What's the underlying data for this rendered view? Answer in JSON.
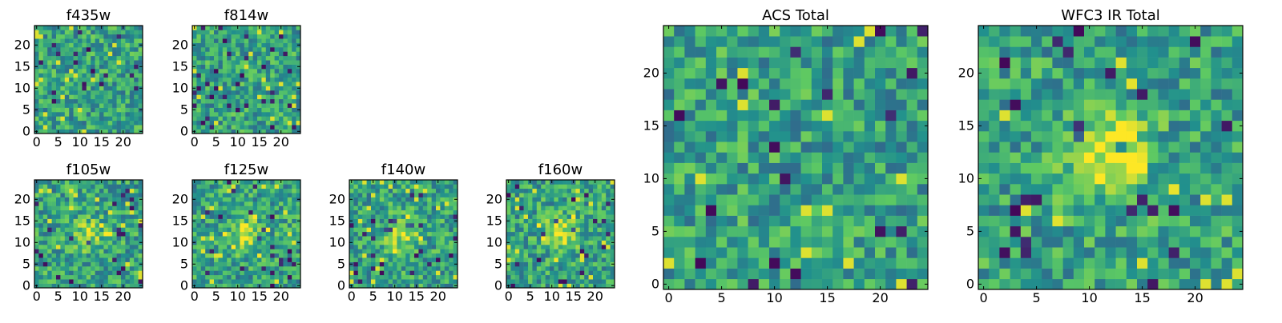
{
  "figure": {
    "panels": [
      {
        "id": "f435w",
        "title": "f435w",
        "size": 25,
        "seed": 435,
        "blob": 0.0,
        "x_ticks": [
          0,
          5,
          10,
          15,
          20
        ],
        "y_ticks": [
          0,
          5,
          10,
          15,
          20
        ]
      },
      {
        "id": "f814w",
        "title": "f814w",
        "size": 25,
        "seed": 814,
        "blob": 0.0,
        "x_ticks": [
          0,
          5,
          10,
          15,
          20
        ],
        "y_ticks": [
          0,
          5,
          10,
          15,
          20
        ]
      },
      {
        "id": "f105w",
        "title": "f105w",
        "size": 25,
        "seed": 105,
        "blob": 0.25,
        "x_ticks": [
          0,
          5,
          10,
          15,
          20
        ],
        "y_ticks": [
          0,
          5,
          10,
          15,
          20
        ]
      },
      {
        "id": "f125w",
        "title": "f125w",
        "size": 25,
        "seed": 125,
        "blob": 0.35,
        "x_ticks": [
          0,
          5,
          10,
          15,
          20
        ],
        "y_ticks": [
          0,
          5,
          10,
          15,
          20
        ]
      },
      {
        "id": "f140w",
        "title": "f140w",
        "size": 25,
        "seed": 140,
        "blob": 0.3,
        "x_ticks": [
          0,
          5,
          10,
          15,
          20
        ],
        "y_ticks": [
          0,
          5,
          10,
          15,
          20
        ]
      },
      {
        "id": "f160w",
        "title": "f160w",
        "size": 25,
        "seed": 160,
        "blob": 0.4,
        "x_ticks": [
          0,
          5,
          10,
          15,
          20
        ],
        "y_ticks": [
          0,
          5,
          10,
          15,
          20
        ]
      },
      {
        "id": "acs-total",
        "title": "ACS Total",
        "size": 25,
        "seed": 9001,
        "blob": 0.0,
        "x_ticks": [
          0,
          5,
          10,
          15,
          20
        ],
        "y_ticks": [
          0,
          5,
          10,
          15,
          20
        ]
      },
      {
        "id": "wfc3-total",
        "title": "WFC3 IR Total",
        "size": 25,
        "seed": 9002,
        "blob": 0.45,
        "x_ticks": [
          0,
          5,
          10,
          15,
          20
        ],
        "y_ticks": [
          0,
          5,
          10,
          15,
          20
        ]
      }
    ],
    "colormap": [
      "#440154",
      "#3b528b",
      "#21908d",
      "#5dc963",
      "#fde725"
    ]
  },
  "chart_data": [
    {
      "type": "heatmap",
      "title": "f435w",
      "x_range": [
        0,
        24
      ],
      "y_range": [
        0,
        24
      ]
    },
    {
      "type": "heatmap",
      "title": "f814w",
      "x_range": [
        0,
        24
      ],
      "y_range": [
        0,
        24
      ]
    },
    {
      "type": "heatmap",
      "title": "f105w",
      "x_range": [
        0,
        24
      ],
      "y_range": [
        0,
        24
      ]
    },
    {
      "type": "heatmap",
      "title": "f125w",
      "x_range": [
        0,
        24
      ],
      "y_range": [
        0,
        24
      ]
    },
    {
      "type": "heatmap",
      "title": "f140w",
      "x_range": [
        0,
        24
      ],
      "y_range": [
        0,
        24
      ]
    },
    {
      "type": "heatmap",
      "title": "f160w",
      "x_range": [
        0,
        24
      ],
      "y_range": [
        0,
        24
      ]
    },
    {
      "type": "heatmap",
      "title": "ACS Total",
      "x_range": [
        0,
        24
      ],
      "y_range": [
        0,
        24
      ]
    },
    {
      "type": "heatmap",
      "title": "WFC3 IR Total",
      "x_range": [
        0,
        24
      ],
      "y_range": [
        0,
        24
      ]
    }
  ]
}
